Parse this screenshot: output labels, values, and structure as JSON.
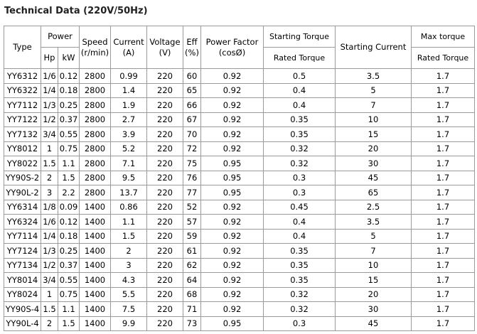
{
  "title": "Technical Data (220V/50Hz)",
  "table": {
    "header": {
      "type": "Type",
      "power": "Power",
      "hp": "Hp",
      "kw": "kW",
      "speed": [
        "Speed",
        "(r/min)"
      ],
      "current": [
        "Current",
        "(A)"
      ],
      "voltage": [
        "Voltage",
        "(V)"
      ],
      "eff": [
        "Eff",
        "(%)"
      ],
      "power_factor": [
        "Power Factor",
        "(cosØ)"
      ],
      "starting_torque": [
        "Starting Torque",
        "Rated Torque"
      ],
      "starting_current": "Starting Current",
      "max_torque": [
        "Max torque",
        "Rated Torque"
      ]
    },
    "rows": [
      [
        "YY6312",
        "1/6",
        "0.12",
        "2800",
        "0.99",
        "220",
        "60",
        "0.92",
        "0.5",
        "3.5",
        "1.7"
      ],
      [
        "YY6322",
        "1/4",
        "0.18",
        "2800",
        "1.4",
        "220",
        "65",
        "0.92",
        "0.4",
        "5",
        "1.7"
      ],
      [
        "YY7112",
        "1/3",
        "0.25",
        "2800",
        "1.9",
        "220",
        "66",
        "0.92",
        "0.4",
        "7",
        "1.7"
      ],
      [
        "YY7122",
        "1/2",
        "0.37",
        "2800",
        "2.7",
        "220",
        "67",
        "0.92",
        "0.35",
        "10",
        "1.7"
      ],
      [
        "YY7132",
        "3/4",
        "0.55",
        "2800",
        "3.9",
        "220",
        "70",
        "0.92",
        "0.35",
        "15",
        "1.7"
      ],
      [
        "YY8012",
        "1",
        "0.75",
        "2800",
        "5.2",
        "220",
        "72",
        "0.92",
        "0.32",
        "20",
        "1.7"
      ],
      [
        "YY8022",
        "1.5",
        "1.1",
        "2800",
        "7.1",
        "220",
        "75",
        "0.95",
        "0.32",
        "30",
        "1.7"
      ],
      [
        "YY90S-2",
        "2",
        "1.5",
        "2800",
        "9.5",
        "220",
        "76",
        "0.95",
        "0.3",
        "45",
        "1.7"
      ],
      [
        "YY90L-2",
        "3",
        "2.2",
        "2800",
        "13.7",
        "220",
        "77",
        "0.95",
        "0.3",
        "65",
        "1.7"
      ],
      [
        "YY6314",
        "1/8",
        "0.09",
        "1400",
        "0.86",
        "220",
        "52",
        "0.92",
        "0.45",
        "2.5",
        "1.7"
      ],
      [
        "YY6324",
        "1/6",
        "0.12",
        "1400",
        "1.1",
        "220",
        "57",
        "0.92",
        "0.4",
        "3.5",
        "1.7"
      ],
      [
        "YY7114",
        "1/4",
        "0.18",
        "1400",
        "1.5",
        "220",
        "59",
        "0.92",
        "0.4",
        "5",
        "1.7"
      ],
      [
        "YY7124",
        "1/3",
        "0.25",
        "1400",
        "2",
        "220",
        "61",
        "0.92",
        "0.35",
        "7",
        "1.7"
      ],
      [
        "YY7134",
        "1/2",
        "0.37",
        "1400",
        "3",
        "220",
        "62",
        "0.92",
        "0.35",
        "10",
        "1.7"
      ],
      [
        "YY8014",
        "3/4",
        "0.55",
        "1400",
        "4.3",
        "220",
        "64",
        "0.92",
        "0.35",
        "15",
        "1.7"
      ],
      [
        "YY8024",
        "1",
        "0.75",
        "1400",
        "5.5",
        "220",
        "68",
        "0.92",
        "0.32",
        "20",
        "1.7"
      ],
      [
        "YY90S-4",
        "1.5",
        "1.1",
        "1400",
        "7.5",
        "220",
        "71",
        "0.92",
        "0.32",
        "30",
        "1.7"
      ],
      [
        "YY90L-4",
        "2",
        "1.5",
        "1400",
        "9.9",
        "220",
        "73",
        "0.95",
        "0.3",
        "45",
        "1.7"
      ]
    ]
  }
}
